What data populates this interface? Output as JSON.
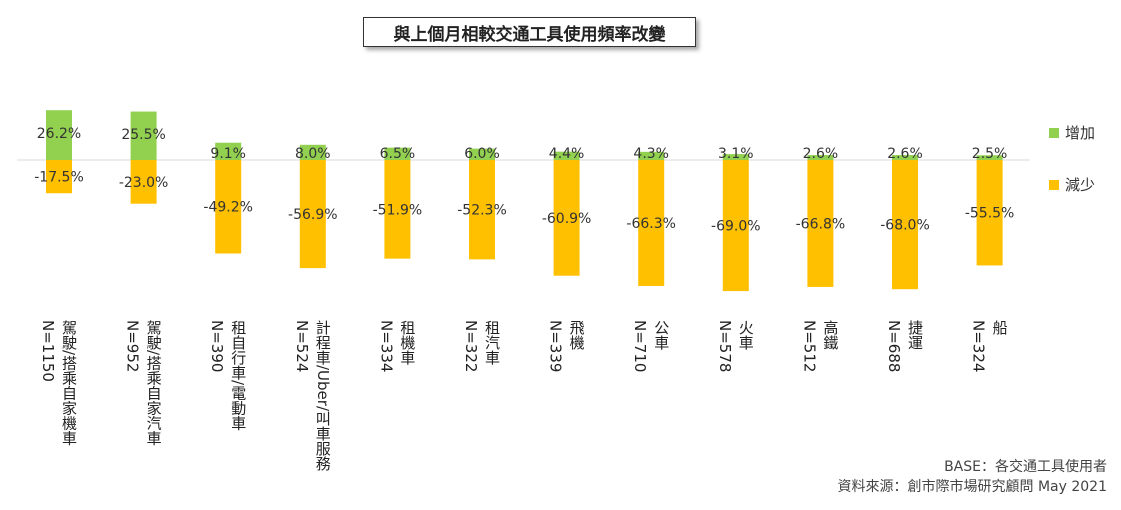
{
  "chart_data": {
    "type": "bar",
    "title": "與上個月相較交通工具使用頻率改變",
    "categories": [
      {
        "name": "駕駛/搭乘自家機車",
        "n": "N=1150"
      },
      {
        "name": "駕駛/搭乘自家汽車",
        "n": "N=952"
      },
      {
        "name": "租自行車/電動車",
        "n": "N=390"
      },
      {
        "name": "計程車/Uber/叫車服務",
        "n": "N=524"
      },
      {
        "name": "租機車",
        "n": "N=334"
      },
      {
        "name": "租汽車",
        "n": "N=322"
      },
      {
        "name": "飛機",
        "n": "N=339"
      },
      {
        "name": "公車",
        "n": "N=710"
      },
      {
        "name": "火車",
        "n": "N=578"
      },
      {
        "name": "高鐵",
        "n": "N=512"
      },
      {
        "name": "捷運",
        "n": "N=688"
      },
      {
        "name": "船",
        "n": "N=324"
      }
    ],
    "series": [
      {
        "name": "增加",
        "color": "#92D050",
        "values": [
          26.2,
          25.5,
          9.1,
          8.0,
          6.5,
          6.0,
          4.4,
          4.3,
          3.1,
          2.6,
          2.6,
          2.5
        ],
        "labels": [
          "26.2%",
          "25.5%",
          "9.1%",
          "8.0%",
          "6.5%",
          "6.0%",
          "4.4%",
          "4.3%",
          "3.1%",
          "2.6%",
          "2.6%",
          "2.5%"
        ]
      },
      {
        "name": "減少",
        "color": "#FFC000",
        "values": [
          -17.5,
          -23.0,
          -49.2,
          -56.9,
          -51.9,
          -52.3,
          -60.9,
          -66.3,
          -69.0,
          -66.8,
          -68.0,
          -55.5
        ],
        "labels": [
          "-17.5%",
          "-23.0%",
          "-49.2%",
          "-56.9%",
          "-51.9%",
          "-52.3%",
          "-60.9%",
          "-66.3%",
          "-69.0%",
          "-66.8%",
          "-68.0%",
          "-55.5%"
        ]
      }
    ],
    "legend_position": "right",
    "grid": false
  },
  "footnotes": {
    "base": "BASE：各交通工具使用者",
    "source": "資料來源：創市際市場研究顧問 May 2021"
  }
}
